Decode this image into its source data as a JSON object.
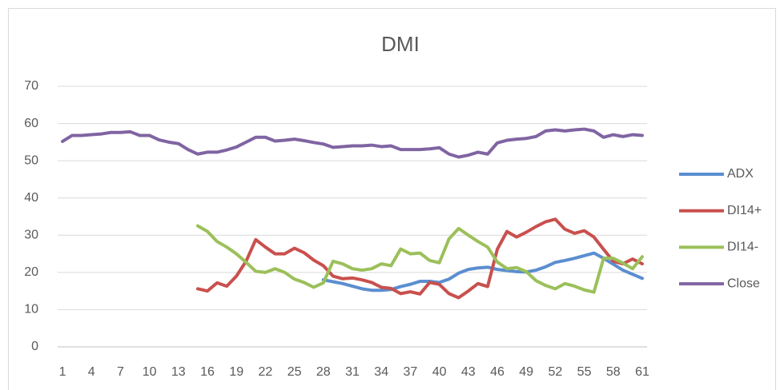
{
  "chart_data": {
    "type": "line",
    "title": "DMI",
    "categories": [
      1,
      null,
      null,
      4,
      null,
      null,
      7,
      null,
      null,
      10,
      null,
      null,
      13,
      null,
      null,
      16,
      null,
      null,
      19,
      null,
      null,
      22,
      null,
      null,
      25,
      null,
      null,
      28,
      null,
      null,
      31,
      null,
      null,
      34,
      null,
      null,
      37,
      null,
      null,
      40,
      null,
      null,
      43,
      null,
      null,
      46,
      null,
      null,
      49,
      null,
      null,
      52,
      null,
      null,
      55,
      null,
      null,
      58,
      null,
      null,
      61
    ],
    "ylim": [
      0,
      70
    ],
    "yticks": [
      0,
      10,
      20,
      30,
      40,
      50,
      60,
      70
    ],
    "grid": true,
    "legend": "right",
    "series": [
      {
        "name": "ADX",
        "color": "#5b8ed0",
        "values": [
          null,
          null,
          null,
          null,
          null,
          null,
          null,
          null,
          null,
          null,
          null,
          null,
          null,
          null,
          null,
          null,
          null,
          null,
          null,
          null,
          null,
          null,
          null,
          null,
          null,
          null,
          null,
          18,
          17.5,
          17,
          16.3,
          15.6,
          15.2,
          15.2,
          15.4,
          16.2,
          16.8,
          17.6,
          17.6,
          17.3,
          18.2,
          19.8,
          20.8,
          21.2,
          21.4,
          20.8,
          20.5,
          20.2,
          20.1,
          20.6,
          21.5,
          22.7,
          23.2,
          23.8,
          24.5,
          25.2,
          23.8,
          22.2,
          20.6,
          19.5,
          18.4
        ]
      },
      {
        "name": "DI14+",
        "color": "#c9504d",
        "values": [
          null,
          null,
          null,
          null,
          null,
          null,
          null,
          null,
          null,
          null,
          null,
          null,
          null,
          null,
          15.6,
          15,
          17.2,
          16.3,
          19,
          23,
          28.8,
          26.8,
          25,
          25,
          26.5,
          25.3,
          23.3,
          21.8,
          19,
          18.3,
          18.5,
          18,
          17.3,
          16,
          15.7,
          14.3,
          14.8,
          14.2,
          17.3,
          16.8,
          14.3,
          13.2,
          15,
          17,
          16.2,
          26.2,
          31,
          29.5,
          30.8,
          32.3,
          33.6,
          34.3,
          31.6,
          30.5,
          31.2,
          29.5,
          26.2,
          23,
          22.3,
          23.6,
          22.3
        ]
      },
      {
        "name": "DI14-",
        "color": "#9bc05a",
        "values": [
          null,
          null,
          null,
          null,
          null,
          null,
          null,
          null,
          null,
          null,
          null,
          null,
          null,
          null,
          32.5,
          31,
          28.3,
          26.8,
          25,
          22.7,
          20.3,
          20,
          21,
          20,
          18.2,
          17.3,
          16,
          17.2,
          23,
          22.3,
          21,
          20.6,
          21,
          22.3,
          21.8,
          26.3,
          25,
          25.2,
          23.2,
          22.6,
          29,
          31.8,
          30,
          28.3,
          26.8,
          22.8,
          21,
          21.3,
          20.2,
          17.8,
          16.5,
          15.6,
          17,
          16.3,
          15.3,
          14.7,
          23.8,
          23.8,
          22.5,
          21,
          24.2
        ]
      },
      {
        "name": "Close",
        "color": "#8064a2",
        "values": [
          55.2,
          56.8,
          56.8,
          57,
          57.2,
          57.6,
          57.6,
          57.8,
          56.8,
          56.8,
          55.6,
          55,
          54.6,
          53,
          51.8,
          52.3,
          52.3,
          52.9,
          53.7,
          55,
          56.3,
          56.3,
          55.3,
          55.5,
          55.8,
          55.4,
          54.9,
          54.5,
          53.6,
          53.8,
          54,
          54,
          54.2,
          53.8,
          54,
          53,
          53,
          53,
          53.2,
          53.5,
          51.8,
          51,
          51.5,
          52.3,
          51.8,
          54.8,
          55.5,
          55.8,
          56,
          56.5,
          58,
          58.3,
          58,
          58.3,
          58.5,
          58,
          56.3,
          57,
          56.5,
          57,
          56.8
        ]
      }
    ]
  }
}
